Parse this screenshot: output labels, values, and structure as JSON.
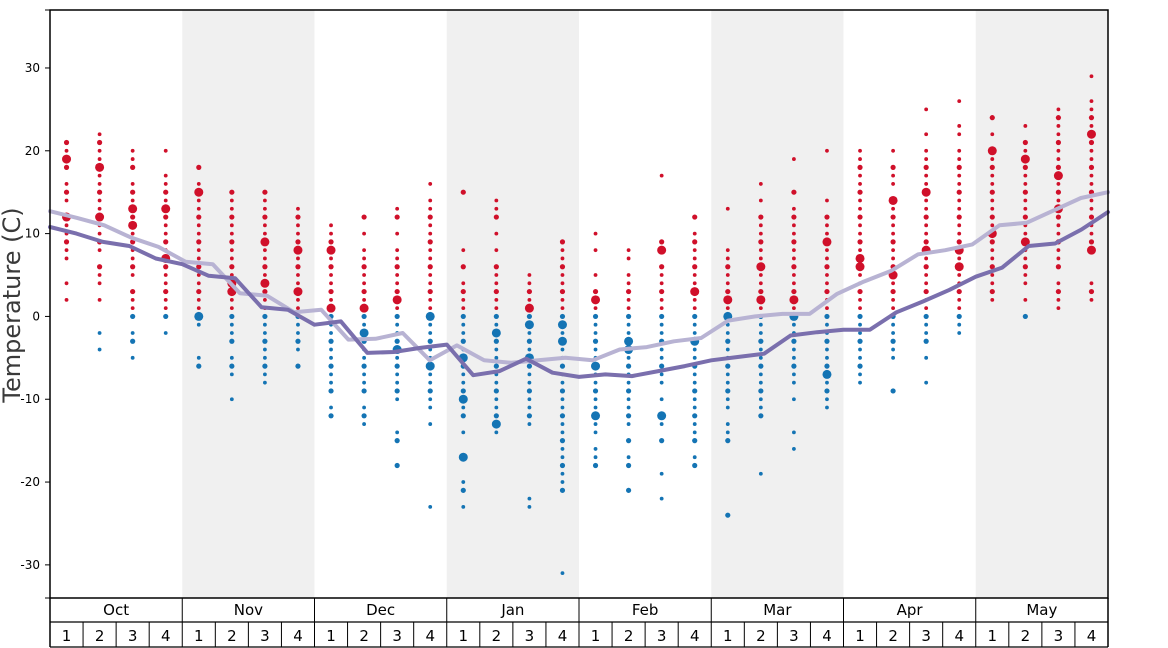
{
  "chart_data": {
    "type": "scatter",
    "title": "",
    "ylabel": "Temperature (C)",
    "ylim": [
      -34,
      37
    ],
    "yticks": [
      "30",
      "20",
      "10",
      "0",
      "-10",
      "-20",
      "-30"
    ],
    "ytick_values": [
      30,
      20,
      10,
      0,
      -10,
      -20,
      -30
    ],
    "months": [
      "Oct",
      "Nov",
      "Dec",
      "Jan",
      "Feb",
      "Mar",
      "Apr",
      "May"
    ],
    "weeks": [
      "1",
      "2",
      "3",
      "4"
    ],
    "grid": false,
    "shaded_months": [
      "Nov",
      "Jan",
      "Mar",
      "May"
    ],
    "colors": {
      "above_zero": "#d0102a",
      "below_zero": "#1474b4",
      "line_light": "#b8b3d3",
      "line_dark": "#7a6fad",
      "band_shade": "#f0f0f0"
    },
    "series": [
      {
        "name": "",
        "kind": "line",
        "color": "#b8b3d3",
        "values": [
          12.7,
          11.9,
          11.0,
          9.5,
          8.4,
          6.6,
          6.3,
          2.8,
          2.5,
          0.5,
          0.8,
          -2.8,
          -2.7,
          -2.0,
          -5.3,
          -3.5,
          -5.3,
          -5.6,
          -5.3,
          -5.0,
          -5.3,
          -4.0,
          -3.7,
          -3.0,
          -2.6,
          -0.5,
          0.0,
          0.3,
          0.3,
          2.7,
          4.2,
          5.5,
          7.5,
          8.0,
          8.7,
          11.0,
          11.3,
          12.8,
          14.3,
          15.0
        ]
      },
      {
        "name": "",
        "kind": "line",
        "color": "#7a6fad",
        "values": [
          10.8,
          10.0,
          9.0,
          8.5,
          7.0,
          6.3,
          4.9,
          4.6,
          1.1,
          0.8,
          -1.0,
          -0.6,
          -4.4,
          -4.3,
          -3.8,
          -3.4,
          -7.1,
          -6.6,
          -5.1,
          -6.8,
          -7.3,
          -7.0,
          -7.2,
          -6.6,
          -6.0,
          -5.3,
          -4.9,
          -4.5,
          -2.3,
          -1.9,
          -1.6,
          -1.6,
          0.5,
          1.8,
          3.2,
          4.8,
          5.9,
          8.5,
          8.8,
          10.5,
          12.6
        ]
      }
    ],
    "points": [
      {
        "x": 1,
        "t": [
          21,
          20,
          19,
          18,
          16,
          15,
          14,
          12,
          11,
          10,
          9,
          8,
          7,
          4,
          2
        ],
        "big": [
          19,
          12
        ]
      },
      {
        "x": 2,
        "t": [
          22,
          21,
          20,
          19,
          18,
          17,
          16,
          15,
          14,
          13,
          12,
          11,
          10,
          9,
          8,
          6,
          5,
          4,
          2,
          -2,
          -4
        ],
        "big": [
          18,
          12
        ]
      },
      {
        "x": 3,
        "t": [
          20,
          19,
          18,
          16,
          15,
          14,
          13,
          12,
          11,
          10,
          9,
          8,
          7,
          6,
          5,
          3,
          2,
          1,
          0,
          -2,
          -3,
          -5
        ],
        "big": [
          11,
          13
        ]
      },
      {
        "x": 4,
        "t": [
          20,
          17,
          16,
          15,
          14,
          13,
          12,
          11,
          10,
          9,
          8,
          7,
          6,
          5,
          4,
          3,
          2,
          1,
          0,
          -2
        ],
        "big": [
          13,
          7
        ]
      },
      {
        "x": 5,
        "t": [
          18,
          16,
          15,
          14,
          13,
          12,
          11,
          10,
          9,
          8,
          7,
          6,
          5,
          4,
          3,
          2,
          1,
          0,
          -1,
          -5,
          -6
        ],
        "big": [
          15,
          0
        ]
      },
      {
        "x": 6,
        "t": [
          15,
          14,
          13,
          12,
          11,
          10,
          9,
          8,
          7,
          6,
          5,
          4,
          3,
          2,
          1,
          0,
          -1,
          -2,
          -3,
          -5,
          -6,
          -7,
          -10
        ],
        "big": [
          4,
          3
        ]
      },
      {
        "x": 7,
        "t": [
          15,
          14,
          13,
          12,
          11,
          10,
          9,
          8,
          7,
          6,
          5,
          4,
          3,
          2,
          1,
          0,
          -1,
          -2,
          -3,
          -4,
          -5,
          -6,
          -7,
          -8
        ],
        "big": [
          4,
          9
        ]
      },
      {
        "x": 8,
        "t": [
          13,
          12,
          11,
          10,
          9,
          8,
          7,
          6,
          5,
          4,
          3,
          2,
          1,
          0,
          -1,
          -2,
          -3,
          -4,
          -6
        ],
        "big": [
          3,
          8
        ]
      },
      {
        "x": 9,
        "t": [
          11,
          10,
          9,
          8,
          7,
          6,
          5,
          4,
          3,
          2,
          1,
          0,
          -1,
          -2,
          -3,
          -4,
          -5,
          -6,
          -7,
          -8,
          -9,
          -11,
          -12
        ],
        "big": [
          8,
          1
        ]
      },
      {
        "x": 10,
        "t": [
          12,
          10,
          8,
          7,
          6,
          5,
          4,
          3,
          2,
          1,
          0,
          -1,
          -2,
          -3,
          -4,
          -5,
          -6,
          -7,
          -8,
          -9,
          -11,
          -12,
          -13
        ],
        "big": [
          1,
          -2
        ]
      },
      {
        "x": 11,
        "t": [
          13,
          12,
          10,
          8,
          7,
          6,
          5,
          4,
          3,
          2,
          1,
          0,
          -1,
          -2,
          -3,
          -4,
          -5,
          -6,
          -7,
          -8,
          -9,
          -10,
          -14,
          -15,
          -18
        ],
        "big": [
          -4,
          2
        ]
      },
      {
        "x": 12,
        "t": [
          16,
          14,
          13,
          12,
          11,
          10,
          9,
          8,
          7,
          6,
          5,
          4,
          3,
          2,
          1,
          0,
          -1,
          -2,
          -3,
          -4,
          -5,
          -6,
          -7,
          -8,
          -9,
          -10,
          -11,
          -13,
          -23
        ],
        "big": [
          0,
          -6
        ]
      },
      {
        "x": 13,
        "t": [
          15,
          8,
          6,
          4,
          3,
          2,
          1,
          0,
          -1,
          -2,
          -3,
          -4,
          -5,
          -6,
          -7,
          -8,
          -9,
          -10,
          -11,
          -12,
          -14,
          -17,
          -20,
          -21,
          -23
        ],
        "big": [
          -10,
          -17,
          -5
        ]
      },
      {
        "x": 14,
        "t": [
          14,
          13,
          12,
          10,
          8,
          6,
          5,
          4,
          3,
          2,
          1,
          0,
          -1,
          -2,
          -3,
          -4,
          -5,
          -6,
          -7,
          -8,
          -9,
          -10,
          -11,
          -12,
          -13,
          -14
        ],
        "big": [
          -2,
          -13
        ]
      },
      {
        "x": 15,
        "t": [
          5,
          4,
          3,
          2,
          1,
          0,
          -1,
          -2,
          -3,
          -4,
          -5,
          -6,
          -7,
          -8,
          -9,
          -10,
          -11,
          -12,
          -13,
          -22,
          -23
        ],
        "big": [
          -1,
          -5,
          1
        ]
      },
      {
        "x": 16,
        "t": [
          9,
          8,
          7,
          6,
          5,
          4,
          3,
          2,
          1,
          0,
          -1,
          -2,
          -3,
          -4,
          -5,
          -6,
          -7,
          -8,
          -9,
          -10,
          -11,
          -12,
          -13,
          -14,
          -15,
          -16,
          -17,
          -18,
          -19,
          -20,
          -21,
          -31
        ],
        "big": [
          -1,
          -3
        ]
      },
      {
        "x": 17,
        "t": [
          10,
          8,
          5,
          3,
          2,
          1,
          0,
          -1,
          -2,
          -3,
          -4,
          -5,
          -6,
          -7,
          -8,
          -9,
          -10,
          -11,
          -12,
          -13,
          -14,
          -16,
          -17,
          -18
        ],
        "big": [
          2,
          -12,
          -6
        ]
      },
      {
        "x": 18,
        "t": [
          8,
          7,
          5,
          4,
          3,
          2,
          1,
          0,
          -1,
          -2,
          -3,
          -4,
          -5,
          -6,
          -7,
          -8,
          -9,
          -10,
          -11,
          -12,
          -13,
          -15,
          -17,
          -18,
          -21
        ],
        "big": [
          -4,
          -3
        ]
      },
      {
        "x": 19,
        "t": [
          17,
          9,
          8,
          6,
          5,
          4,
          3,
          2,
          1,
          0,
          -1,
          -2,
          -3,
          -4,
          -5,
          -6,
          -7,
          -8,
          -10,
          -12,
          -13,
          -15,
          -19,
          -22
        ],
        "big": [
          8,
          -12
        ]
      },
      {
        "x": 20,
        "t": [
          12,
          10,
          9,
          8,
          7,
          6,
          5,
          4,
          3,
          2,
          1,
          0,
          -1,
          -2,
          -3,
          -4,
          -5,
          -6,
          -7,
          -8,
          -9,
          -10,
          -11,
          -12,
          -13,
          -14,
          -15,
          -17,
          -18
        ],
        "big": [
          3,
          -3
        ]
      },
      {
        "x": 21,
        "t": [
          13,
          8,
          7,
          6,
          5,
          4,
          3,
          2,
          1,
          0,
          -1,
          -2,
          -3,
          -4,
          -5,
          -6,
          -7,
          -8,
          -9,
          -10,
          -11,
          -13,
          -14,
          -15,
          -24
        ],
        "big": [
          2,
          0
        ]
      },
      {
        "x": 22,
        "t": [
          16,
          14,
          12,
          11,
          10,
          9,
          8,
          7,
          6,
          5,
          4,
          3,
          2,
          1,
          0,
          -1,
          -2,
          -3,
          -4,
          -5,
          -6,
          -7,
          -8,
          -9,
          -10,
          -11,
          -12,
          -19
        ],
        "big": [
          2,
          6
        ]
      },
      {
        "x": 23,
        "t": [
          19,
          15,
          13,
          12,
          11,
          10,
          9,
          8,
          7,
          6,
          5,
          4,
          3,
          2,
          1,
          0,
          -1,
          -2,
          -3,
          -4,
          -5,
          -6,
          -7,
          -8,
          -10,
          -14,
          -16
        ],
        "big": [
          2,
          0
        ]
      },
      {
        "x": 24,
        "t": [
          20,
          14,
          12,
          11,
          10,
          9,
          8,
          7,
          6,
          5,
          4,
          3,
          2,
          1,
          0,
          -1,
          -2,
          -3,
          -4,
          -5,
          -6,
          -7,
          -8,
          -9,
          -10,
          -11
        ],
        "big": [
          9,
          -7
        ]
      },
      {
        "x": 25,
        "t": [
          20,
          19,
          18,
          17,
          16,
          15,
          14,
          13,
          12,
          11,
          10,
          9,
          8,
          7,
          6,
          5,
          4,
          3,
          2,
          1,
          0,
          -1,
          -2,
          -3,
          -4,
          -5,
          -6,
          -7,
          -8
        ],
        "big": [
          6,
          7
        ]
      },
      {
        "x": 26,
        "t": [
          20,
          18,
          17,
          16,
          14,
          13,
          12,
          11,
          10,
          9,
          8,
          7,
          6,
          5,
          4,
          3,
          2,
          1,
          0,
          -1,
          -2,
          -3,
          -4,
          -5,
          -9
        ],
        "big": [
          14,
          5
        ]
      },
      {
        "x": 27,
        "t": [
          25,
          22,
          20,
          19,
          18,
          17,
          16,
          15,
          14,
          13,
          12,
          11,
          10,
          9,
          8,
          7,
          6,
          5,
          4,
          3,
          2,
          1,
          0,
          -1,
          -2,
          -3,
          -5,
          -8
        ],
        "big": [
          15,
          8
        ]
      },
      {
        "x": 28,
        "t": [
          26,
          23,
          22,
          20,
          19,
          18,
          17,
          16,
          15,
          14,
          13,
          12,
          11,
          10,
          9,
          8,
          7,
          6,
          5,
          4,
          3,
          2,
          1,
          0,
          -1,
          -2
        ],
        "big": [
          8,
          6
        ]
      },
      {
        "x": 29,
        "t": [
          24,
          22,
          20,
          19,
          18,
          17,
          16,
          15,
          14,
          13,
          12,
          11,
          10,
          9,
          8,
          7,
          6,
          5,
          4,
          3,
          2
        ],
        "big": [
          20,
          10
        ]
      },
      {
        "x": 30,
        "t": [
          23,
          21,
          20,
          19,
          18,
          17,
          16,
          15,
          14,
          13,
          12,
          11,
          10,
          9,
          8,
          7,
          6,
          5,
          4,
          2,
          0
        ],
        "big": [
          19,
          9
        ]
      },
      {
        "x": 31,
        "t": [
          25,
          24,
          23,
          22,
          21,
          20,
          19,
          18,
          17,
          16,
          15,
          14,
          13,
          12,
          11,
          10,
          9,
          8,
          7,
          6,
          4,
          3,
          2,
          1
        ],
        "big": [
          17,
          13
        ]
      },
      {
        "x": 32,
        "t": [
          29,
          26,
          25,
          24,
          23,
          22,
          21,
          20,
          19,
          18,
          17,
          16,
          15,
          14,
          13,
          12,
          11,
          10,
          9,
          8,
          4,
          3,
          2
        ],
        "big": [
          22,
          8
        ]
      }
    ]
  }
}
